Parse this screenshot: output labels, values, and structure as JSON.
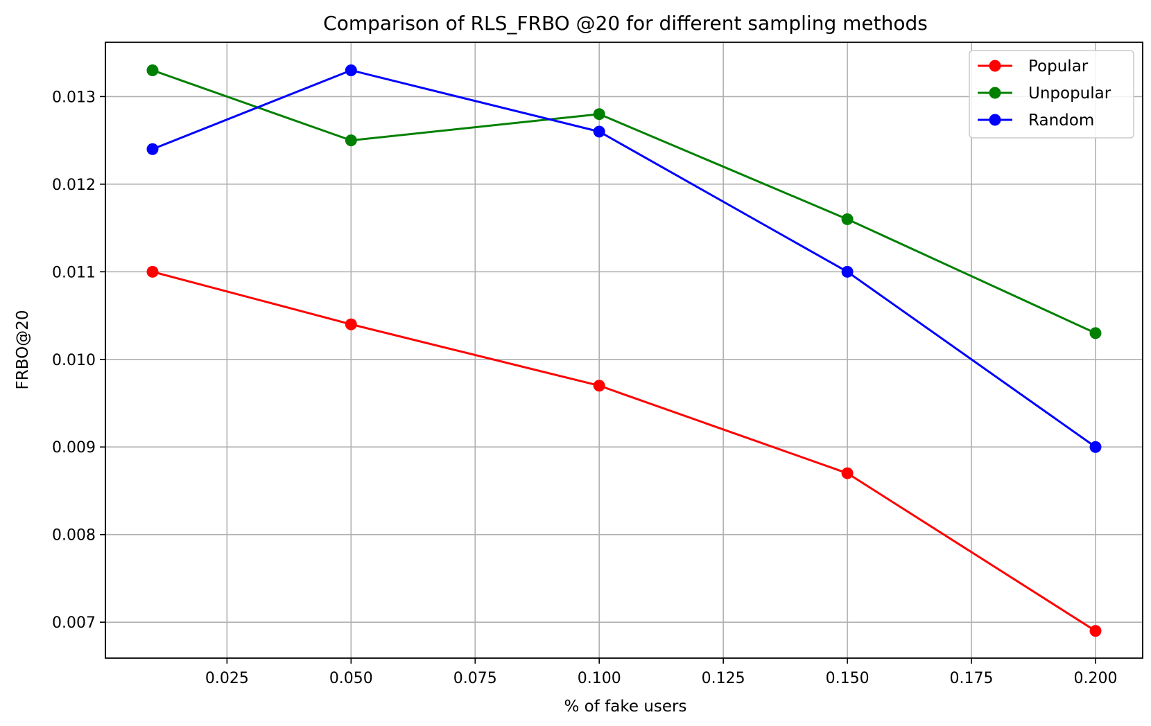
{
  "chart_data": {
    "type": "line",
    "title": "Comparison of RLS_FRBO @20 for different sampling methods",
    "xlabel": "% of fake users",
    "ylabel": "FRBO@20",
    "xlim": [
      0.0005,
      0.2095
    ],
    "ylim": [
      0.00659,
      0.01362
    ],
    "x_ticks": [
      0.025,
      0.05,
      0.075,
      0.1,
      0.125,
      0.15,
      0.175,
      0.2
    ],
    "x_tick_labels": [
      "0.025",
      "0.050",
      "0.075",
      "0.100",
      "0.125",
      "0.150",
      "0.175",
      "0.200"
    ],
    "y_ticks": [
      0.007,
      0.008,
      0.009,
      0.01,
      0.011,
      0.012,
      0.013
    ],
    "y_tick_labels": [
      "0.007",
      "0.008",
      "0.009",
      "0.010",
      "0.011",
      "0.012",
      "0.013"
    ],
    "grid": true,
    "legend_position": "top-right",
    "x": [
      0.01,
      0.05,
      0.1,
      0.15,
      0.2
    ],
    "series": [
      {
        "name": "Popular",
        "color": "#ff0000",
        "values": [
          0.011,
          0.0104,
          0.0097,
          0.0087,
          0.0069
        ]
      },
      {
        "name": "Unpopular",
        "color": "#008000",
        "values": [
          0.0133,
          0.0125,
          0.0128,
          0.0116,
          0.0103
        ]
      },
      {
        "name": "Random",
        "color": "#0000ff",
        "values": [
          0.0124,
          0.0133,
          0.0126,
          0.011,
          0.009
        ]
      }
    ]
  }
}
